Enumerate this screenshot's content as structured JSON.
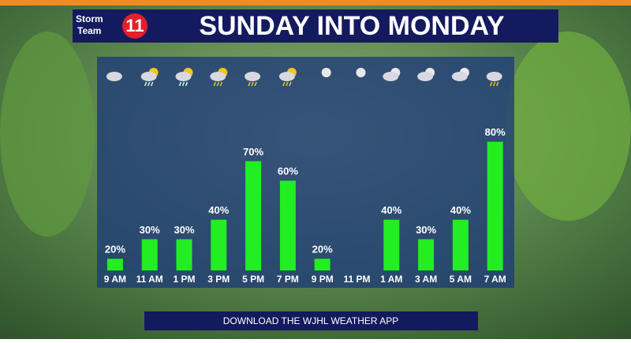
{
  "header": {
    "logo_line1": "Storm",
    "logo_line2": "Team",
    "logo_number": "11"
  },
  "chart_data": {
    "type": "bar",
    "title": "SUNDAY INTO MONDAY",
    "categories": [
      "9 AM",
      "11 AM",
      "1 PM",
      "3 PM",
      "5 PM",
      "7 PM",
      "9 PM",
      "11 PM",
      "1 AM",
      "3 AM",
      "5 AM",
      "7 AM"
    ],
    "values": [
      20,
      30,
      30,
      40,
      70,
      60,
      20,
      null,
      40,
      30,
      40,
      80
    ],
    "value_labels": [
      "20%",
      "30%",
      "30%",
      "40%",
      "70%",
      "60%",
      "20%",
      null,
      "40%",
      "30%",
      "40%",
      "80%"
    ],
    "color": "#22ee22",
    "ylim": [
      14,
      90
    ]
  },
  "footer": {
    "button": "DOWNLOAD THE WJHL WEATHER APP"
  }
}
